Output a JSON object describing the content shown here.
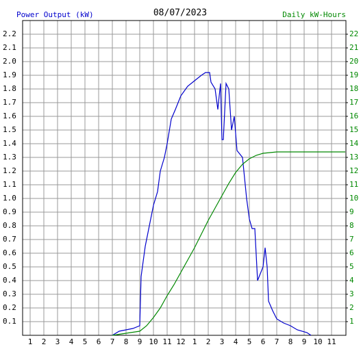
{
  "chart_data": {
    "type": "line",
    "title": "08/07/2023",
    "xlim": [
      0.45,
      24.05
    ],
    "ylim": [
      0,
      2.3
    ],
    "y2lim": [
      0,
      23
    ],
    "grid": true,
    "xticks": [
      {
        "value": 1,
        "label": "1"
      },
      {
        "value": 2,
        "label": "2"
      },
      {
        "value": 3,
        "label": "3"
      },
      {
        "value": 4,
        "label": "4"
      },
      {
        "value": 5,
        "label": "5"
      },
      {
        "value": 6,
        "label": "6"
      },
      {
        "value": 7,
        "label": "7"
      },
      {
        "value": 8,
        "label": "8"
      },
      {
        "value": 9,
        "label": "9"
      },
      {
        "value": 10,
        "label": "10"
      },
      {
        "value": 11,
        "label": "11"
      },
      {
        "value": 12,
        "label": "12"
      },
      {
        "value": 13,
        "label": "1"
      },
      {
        "value": 14,
        "label": "2"
      },
      {
        "value": 15,
        "label": "3"
      },
      {
        "value": 16,
        "label": "4"
      },
      {
        "value": 17,
        "label": "5"
      },
      {
        "value": 18,
        "label": "6"
      },
      {
        "value": 19,
        "label": "7"
      },
      {
        "value": 20,
        "label": "8"
      },
      {
        "value": 21,
        "label": "9"
      },
      {
        "value": 22,
        "label": "10"
      },
      {
        "value": 23,
        "label": "11"
      }
    ],
    "yticks": [
      0.1,
      0.2,
      0.3,
      0.4,
      0.5,
      0.6,
      0.7,
      0.8,
      0.9,
      {
        "value": 1,
        "label": "1.0"
      },
      1.1,
      1.2,
      1.3,
      1.4,
      1.5,
      1.6,
      1.7,
      1.8,
      1.9,
      {
        "value": 2,
        "label": "2.0"
      },
      2.1,
      2.2
    ],
    "y2ticks": [
      1,
      2,
      3,
      4,
      5,
      6,
      7,
      8,
      9,
      10,
      11,
      12,
      13,
      14,
      15,
      16,
      17,
      18,
      19,
      20,
      21,
      22
    ],
    "series": [
      {
        "name": "Power Output (kW)",
        "color": "#0000cc",
        "x": [
          7.0,
          7.5,
          8,
          8.5,
          9,
          9.1,
          9.4,
          9.7,
          10,
          10.3,
          10.5,
          10.8,
          11,
          11.3,
          11.6,
          12,
          12.5,
          13,
          13.5,
          13.8,
          14.1,
          14.2,
          14.5,
          14.7,
          14.8,
          14.9,
          15.0,
          15.1,
          15.3,
          15.5,
          15.7,
          15.9,
          16.1,
          16.5,
          16.8,
          17,
          17.2,
          17.4,
          17.6,
          17.8,
          18,
          18.15,
          18.3,
          18.4,
          18.7,
          19,
          19.5,
          20,
          20.5,
          21.2,
          21.5
        ],
        "values": [
          0,
          0.03,
          0.04,
          0.05,
          0.07,
          0.43,
          0.65,
          0.8,
          0.95,
          1.05,
          1.2,
          1.3,
          1.4,
          1.58,
          1.65,
          1.75,
          1.82,
          1.86,
          1.9,
          1.92,
          1.92,
          1.85,
          1.8,
          1.65,
          1.75,
          1.84,
          1.43,
          1.43,
          1.84,
          1.8,
          1.5,
          1.6,
          1.35,
          1.3,
          1.0,
          0.85,
          0.78,
          0.78,
          0.4,
          0.45,
          0.5,
          0.64,
          0.5,
          0.25,
          0.18,
          0.12,
          0.09,
          0.07,
          0.04,
          0.02,
          0
        ]
      },
      {
        "name": "Daily kW-Hours",
        "color": "#008800",
        "axis": "y2",
        "x": [
          7,
          9,
          9.5,
          10,
          10.5,
          11,
          11.5,
          12,
          12.5,
          13,
          13.5,
          14,
          14.5,
          15,
          15.5,
          16,
          16.5,
          17,
          17.5,
          18,
          18.5,
          19,
          20,
          24
        ],
        "values": [
          0,
          0.3,
          0.7,
          1.3,
          2.0,
          2.9,
          3.7,
          4.6,
          5.5,
          6.4,
          7.4,
          8.4,
          9.3,
          10.2,
          11.1,
          11.9,
          12.5,
          12.9,
          13.15,
          13.3,
          13.35,
          13.4,
          13.4,
          13.4
        ]
      }
    ]
  }
}
